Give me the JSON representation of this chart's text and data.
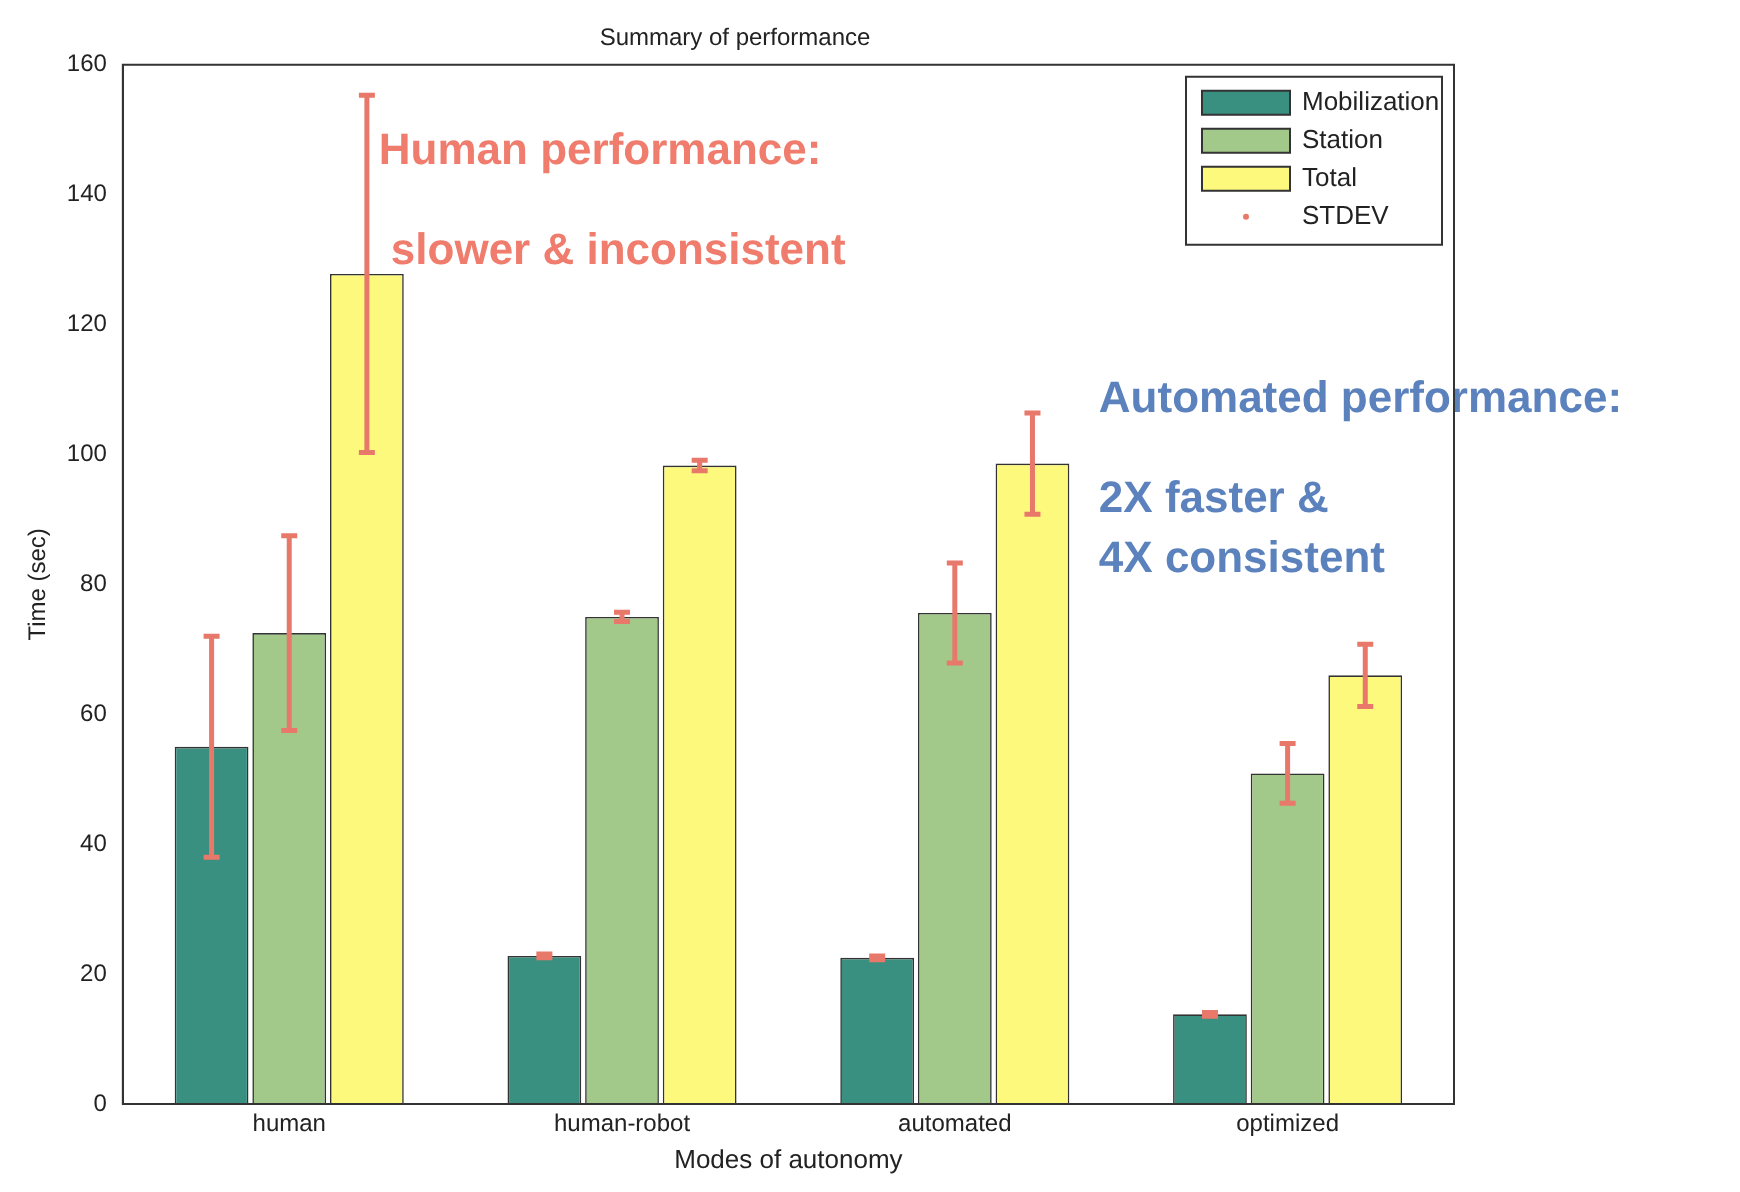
{
  "chart_data": {
    "type": "bar",
    "title": "Summary of performance",
    "xlabel": "Modes of autonomy",
    "ylabel": "Time (sec)",
    "categories": [
      "human",
      "human-robot",
      "automated",
      "optimized"
    ],
    "series": [
      {
        "name": "Mobilization",
        "color": "#3a9080",
        "values": [
          55,
          22.8,
          22.5,
          13.8
        ],
        "errors": [
          17,
          0.3,
          0.3,
          0.3
        ]
      },
      {
        "name": "Station",
        "color": "#a3c98a",
        "values": [
          72.5,
          75,
          75.6,
          50.9
        ],
        "errors": [
          15,
          0.7,
          7.7,
          4.6
        ]
      },
      {
        "name": "Total",
        "color": "#fdf97c",
        "values": [
          127.8,
          98.3,
          98.6,
          66
        ],
        "errors": [
          27.5,
          0.8,
          7.8,
          4.8
        ]
      },
      {
        "name": "STDEV",
        "type": "scatter",
        "color": "#e8786a",
        "values": [
          null,
          null,
          null,
          null
        ]
      }
    ],
    "ylim": [
      0,
      160
    ],
    "yticks": [
      0,
      20,
      40,
      60,
      80,
      100,
      120,
      140,
      160
    ],
    "grid": false,
    "legend": "top right",
    "annotations": [
      "Human performance:",
      "slower & inconsistent",
      "Automated performance:",
      "2X faster &",
      "4X consistent"
    ]
  }
}
